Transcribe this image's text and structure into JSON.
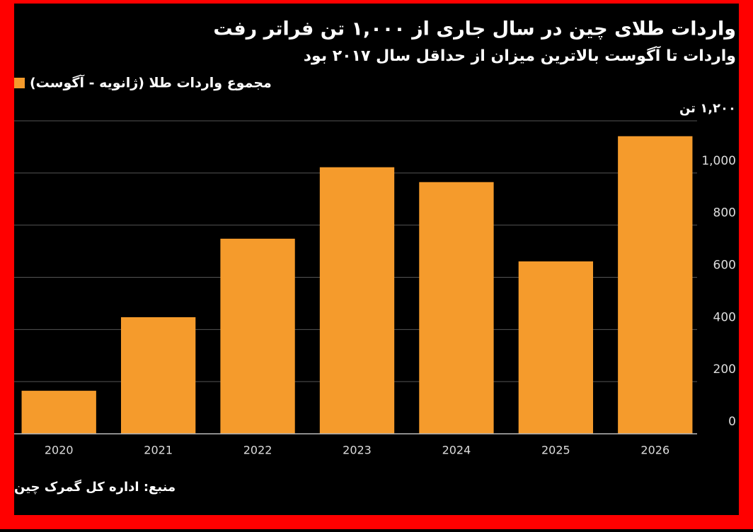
{
  "chart_data": {
    "type": "bar",
    "title": "واردات طلای چین در سال جاری از ۱,۰۰۰ تن فراتر رفت",
    "subtitle": "واردات تا آگوست بالاترین میزان از حداقل سال ۲۰۱۷ بود",
    "source": "منبع: اداره کل گمرک چین",
    "categories": [
      "2020",
      "2021",
      "2022",
      "2023",
      "2024",
      "2025",
      "2026"
    ],
    "series": [
      {
        "name": "مجموع واردات طلا (ژانویه - آگوست)",
        "color": "#f59b2c",
        "values": [
          165,
          447,
          748,
          1022,
          965,
          661,
          1141
        ]
      }
    ],
    "ylim": [
      0,
      1200
    ],
    "yticks": [
      0,
      200,
      400,
      600,
      800,
      {
        "value": 1000,
        "label": "1,000"
      },
      {
        "value": 1200,
        "label": "۱,۲۰۰ تن"
      }
    ],
    "grid": true
  }
}
